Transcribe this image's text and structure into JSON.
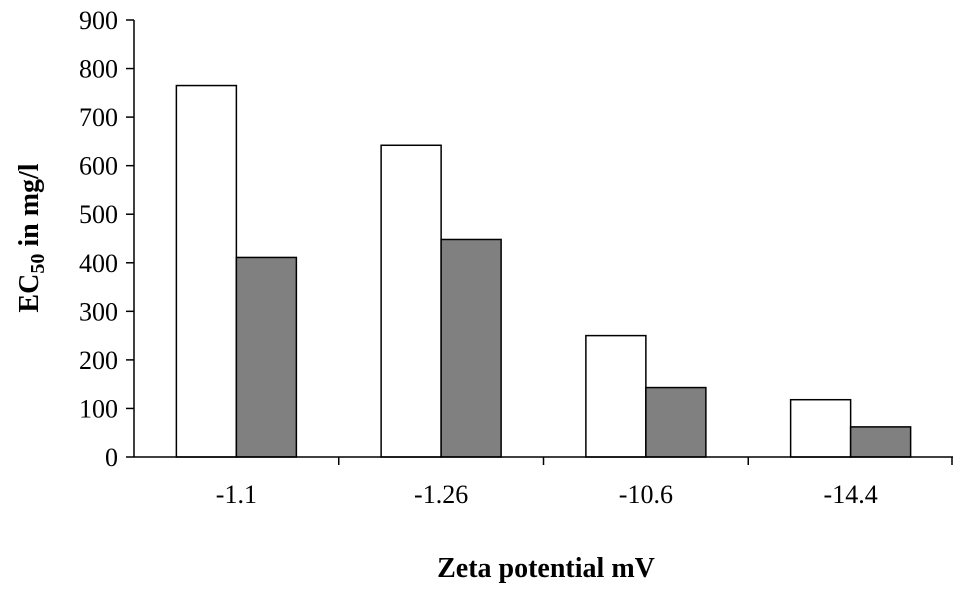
{
  "chart_data": {
    "type": "bar",
    "title": "",
    "xlabel": "Zeta potential mV",
    "ylabel_main": "EC",
    "ylabel_sub": "50",
    "ylabel_rest": " in mg/l",
    "categories": [
      "-1.1",
      "-1.26",
      "-10.6",
      "-14.4"
    ],
    "series": [
      {
        "values": [
          765,
          642,
          250,
          118
        ],
        "color": "#ffffff"
      },
      {
        "values": [
          411,
          448,
          143,
          62
        ],
        "color": "#808080"
      }
    ],
    "ylim": [
      0,
      900
    ],
    "yticks": [
      0,
      100,
      200,
      300,
      400,
      500,
      600,
      700,
      800,
      900
    ],
    "grid": false,
    "legend": "none"
  }
}
